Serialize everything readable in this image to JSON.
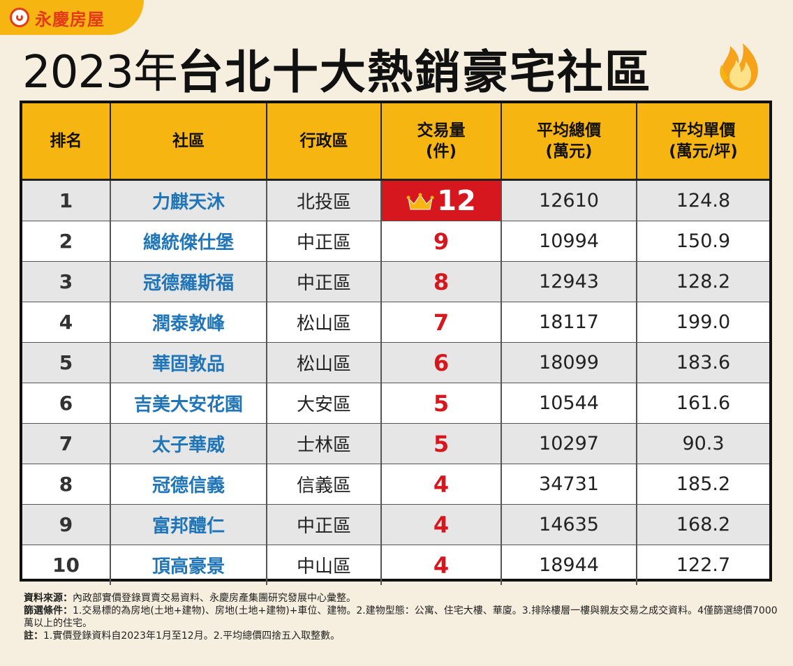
{
  "brand": {
    "logo_text": "永慶房屋",
    "colors": {
      "accent": "#f7b512",
      "brand_red": "#e23a1b",
      "highlight": "#d6171d",
      "name_blue": "#1f75b8"
    }
  },
  "title": {
    "year": "2023年",
    "main": "台北十大熱銷豪宅社區"
  },
  "chart_data": {
    "type": "table",
    "columns": [
      "排名",
      "社區",
      "行政區",
      "交易量\n(件)",
      "平均總價\n(萬元)",
      "平均單價\n(萬元/坪)"
    ],
    "rows": [
      {
        "rank": "1",
        "name": "力麒天沐",
        "district": "北投區",
        "count": "12",
        "total": "12610",
        "unit": "124.8"
      },
      {
        "rank": "2",
        "name": "總統傑仕堡",
        "district": "中正區",
        "count": "9",
        "total": "10994",
        "unit": "150.9"
      },
      {
        "rank": "3",
        "name": "冠德羅斯福",
        "district": "中正區",
        "count": "8",
        "total": "12943",
        "unit": "128.2"
      },
      {
        "rank": "4",
        "name": "潤泰敦峰",
        "district": "松山區",
        "count": "7",
        "total": "18117",
        "unit": "199.0"
      },
      {
        "rank": "5",
        "name": "華固敦品",
        "district": "松山區",
        "count": "6",
        "total": "18099",
        "unit": "183.6"
      },
      {
        "rank": "6",
        "name": "吉美大安花園",
        "district": "大安區",
        "count": "5",
        "total": "10544",
        "unit": "161.6"
      },
      {
        "rank": "7",
        "name": "太子華威",
        "district": "士林區",
        "count": "5",
        "total": "10297",
        "unit": "90.3"
      },
      {
        "rank": "8",
        "name": "冠德信義",
        "district": "信義區",
        "count": "4",
        "total": "34731",
        "unit": "185.2"
      },
      {
        "rank": "9",
        "name": "富邦醴仁",
        "district": "中正區",
        "count": "4",
        "total": "14635",
        "unit": "168.2"
      },
      {
        "rank": "10",
        "name": "頂高豪景",
        "district": "中山區",
        "count": "4",
        "total": "18944",
        "unit": "122.7"
      }
    ]
  },
  "notes": {
    "source_label": "資料來源：",
    "source_text": "內政部實價登錄買賣交易資料、永慶房產集團研究發展中心彙整。",
    "filter_label": "篩選條件：",
    "filter_text": "1.交易標的為房地(土地+建物)、房地(土地+建物)+車位、建物。2.建物型態：公寓、住宅大樓、華廈。3.排除樓層一樓與親友交易之成交資料。4僅篩選總價7000萬以上的住宅。",
    "note_label": "註：",
    "note_text": "1.實價登錄資料自2023年1月至12月。2.平均總價四捨五入取整數。"
  }
}
